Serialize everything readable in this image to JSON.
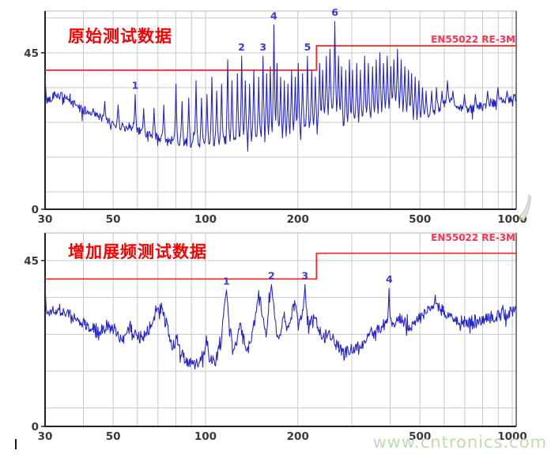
{
  "page": {
    "watermark": "www.cntronics.com"
  },
  "colors": {
    "trace": "#2121cd",
    "limit_line": "#ff2222",
    "limit_label": "#ff3350",
    "title": "#ff0000",
    "axis_text": "#3a3a3a",
    "marker_text": "#3b3bd6",
    "grid": "#c9c9c9",
    "watermark": "#b7d9ab"
  },
  "chart_data": [
    {
      "type": "line",
      "title": "原始测试数据",
      "xlabel": "",
      "ylabel": "",
      "x_scale": "log",
      "xlim": [
        30,
        1030
      ],
      "ylim": [
        0,
        57
      ],
      "x_ticks": [
        30,
        50,
        100,
        200,
        500,
        1000
      ],
      "y_tick_labels": [
        45,
        0
      ],
      "x_gridlines": [
        40,
        50,
        60,
        70,
        80,
        90,
        100,
        200,
        300,
        400,
        500,
        600,
        700,
        800,
        900,
        1000
      ],
      "y_gridlines": [
        5,
        15,
        25,
        35,
        45,
        55
      ],
      "limit_line": {
        "label": "EN55022 RE-3M",
        "points": [
          [
            30,
            40
          ],
          [
            230,
            40
          ],
          [
            230,
            47
          ],
          [
            1030,
            47
          ]
        ]
      },
      "trace_envelope": [
        [
          30,
          30.5
        ],
        [
          32,
          33
        ],
        [
          34,
          32.5
        ],
        [
          36,
          31
        ],
        [
          40,
          28.5
        ],
        [
          45,
          26.5
        ],
        [
          50,
          24.5
        ],
        [
          55,
          23.5
        ],
        [
          60,
          22.5
        ],
        [
          65,
          21.5
        ],
        [
          70,
          20.5
        ],
        [
          75,
          20
        ],
        [
          80,
          19.5
        ],
        [
          85,
          19.5
        ],
        [
          90,
          19
        ],
        [
          95,
          19
        ],
        [
          100,
          19
        ],
        [
          110,
          19.5
        ],
        [
          120,
          20
        ],
        [
          130,
          20.5
        ],
        [
          140,
          20.5
        ],
        [
          150,
          21
        ],
        [
          160,
          21.5
        ],
        [
          170,
          22
        ],
        [
          180,
          21.5
        ],
        [
          190,
          22
        ],
        [
          200,
          23
        ],
        [
          210,
          23.5
        ],
        [
          220,
          23
        ],
        [
          230,
          24.5
        ],
        [
          240,
          26
        ],
        [
          250,
          28
        ],
        [
          260,
          30
        ],
        [
          268,
          28.5
        ],
        [
          275,
          26
        ],
        [
          285,
          24.5
        ],
        [
          300,
          25
        ],
        [
          320,
          26
        ],
        [
          340,
          27
        ],
        [
          355,
          27.5
        ],
        [
          370,
          28.5
        ],
        [
          385,
          29
        ],
        [
          400,
          29.5
        ],
        [
          415,
          30.5
        ],
        [
          430,
          30
        ],
        [
          445,
          29
        ],
        [
          460,
          28
        ],
        [
          480,
          27
        ],
        [
          500,
          26.5
        ],
        [
          520,
          27
        ],
        [
          545,
          27.5
        ],
        [
          570,
          28.5
        ],
        [
          600,
          30
        ],
        [
          620,
          31.5
        ],
        [
          640,
          30.5
        ],
        [
          670,
          29.5
        ],
        [
          700,
          29
        ],
        [
          740,
          29
        ],
        [
          780,
          29.5
        ],
        [
          820,
          30
        ],
        [
          860,
          30.5
        ],
        [
          900,
          31
        ],
        [
          950,
          31.5
        ],
        [
          1030,
          32
        ]
      ],
      "trace_spikes": [
        [
          30,
          39
        ],
        [
          38,
          30
        ],
        [
          43,
          29
        ],
        [
          47,
          31
        ],
        [
          52,
          30
        ],
        [
          59,
          33
        ],
        [
          63,
          29
        ],
        [
          68,
          29
        ],
        [
          73,
          30
        ],
        [
          80,
          36
        ],
        [
          84,
          31
        ],
        [
          88,
          32
        ],
        [
          93,
          37
        ],
        [
          97,
          32
        ],
        [
          101,
          33
        ],
        [
          105,
          38
        ],
        [
          109,
          34
        ],
        [
          113,
          36
        ],
        [
          118,
          43
        ],
        [
          122,
          37
        ],
        [
          127,
          39
        ],
        [
          131,
          44
        ],
        [
          135,
          37
        ],
        [
          139,
          36
        ],
        [
          144,
          40
        ],
        [
          149,
          38
        ],
        [
          154,
          44
        ],
        [
          158,
          39
        ],
        [
          163,
          41
        ],
        [
          167,
          53
        ],
        [
          171,
          42
        ],
        [
          176,
          38
        ],
        [
          181,
          37
        ],
        [
          186,
          36
        ],
        [
          191,
          40
        ],
        [
          196,
          38
        ],
        [
          201,
          42
        ],
        [
          207,
          39
        ],
        [
          215,
          44
        ],
        [
          222,
          40
        ],
        [
          228,
          38
        ],
        [
          235,
          42
        ],
        [
          241,
          40
        ],
        [
          248,
          44
        ],
        [
          255,
          46
        ],
        [
          264,
          54
        ],
        [
          271,
          44
        ],
        [
          278,
          41
        ],
        [
          286,
          40
        ],
        [
          294,
          43
        ],
        [
          302,
          40
        ],
        [
          311,
          42
        ],
        [
          320,
          40
        ],
        [
          330,
          44
        ],
        [
          340,
          42
        ],
        [
          350,
          41
        ],
        [
          360,
          43
        ],
        [
          370,
          45
        ],
        [
          380,
          42
        ],
        [
          391,
          44
        ],
        [
          401,
          41
        ],
        [
          412,
          43
        ],
        [
          423,
          46
        ],
        [
          434,
          43
        ],
        [
          446,
          41
        ],
        [
          458,
          40
        ],
        [
          470,
          39
        ],
        [
          483,
          38
        ],
        [
          496,
          37
        ],
        [
          510,
          35
        ],
        [
          525,
          34
        ],
        [
          545,
          34
        ],
        [
          565,
          35
        ],
        [
          590,
          34
        ],
        [
          615,
          37
        ],
        [
          640,
          34
        ],
        [
          700,
          33
        ],
        [
          760,
          33
        ],
        [
          830,
          34
        ],
        [
          900,
          35
        ],
        [
          960,
          34
        ]
      ],
      "peak_markers": [
        {
          "n": "1",
          "freq": 59,
          "level": 33
        },
        {
          "n": "2",
          "freq": 131,
          "level": 44
        },
        {
          "n": "3",
          "freq": 154,
          "level": 44
        },
        {
          "n": "4",
          "freq": 167,
          "level": 53
        },
        {
          "n": "5",
          "freq": 215,
          "level": 44
        },
        {
          "n": "6",
          "freq": 264,
          "level": 54
        }
      ]
    },
    {
      "type": "line",
      "title": "增加展频测试数据",
      "xlabel": "",
      "ylabel": "",
      "x_scale": "log",
      "xlim": [
        30,
        1030
      ],
      "ylim": [
        0,
        52.5
      ],
      "x_ticks": [
        30,
        50,
        100,
        200,
        500,
        1000
      ],
      "y_tick_labels": [
        45,
        0
      ],
      "x_gridlines": [
        40,
        50,
        60,
        70,
        80,
        90,
        100,
        200,
        300,
        400,
        500,
        600,
        700,
        800,
        900,
        1000
      ],
      "y_gridlines": [
        5,
        15,
        25,
        35,
        45
      ],
      "limit_line": {
        "label": "EN55022 RE-3M",
        "points": [
          [
            30,
            40
          ],
          [
            230,
            40
          ],
          [
            230,
            47
          ],
          [
            1030,
            47
          ]
        ]
      },
      "trace_envelope": [
        [
          30,
          30
        ],
        [
          32,
          32
        ],
        [
          34,
          31.5
        ],
        [
          37,
          29.5
        ],
        [
          40,
          28
        ],
        [
          44,
          26.5
        ],
        [
          47,
          26
        ],
        [
          48.5,
          27.5
        ],
        [
          50,
          25.5
        ],
        [
          54,
          24
        ],
        [
          57,
          27
        ],
        [
          59,
          25
        ],
        [
          62,
          24
        ],
        [
          66,
          27
        ],
        [
          69,
          31.5
        ],
        [
          72,
          32
        ],
        [
          75,
          27
        ],
        [
          78,
          22
        ],
        [
          81,
          23.5
        ],
        [
          84,
          19
        ],
        [
          88,
          17.5
        ],
        [
          92,
          17
        ],
        [
          96,
          17.5
        ],
        [
          99,
          21
        ],
        [
          101,
          23.5
        ],
        [
          104,
          18
        ],
        [
          108,
          18
        ],
        [
          112,
          22
        ],
        [
          115,
          33
        ],
        [
          117,
          35
        ],
        [
          119,
          30
        ],
        [
          123,
          19.5
        ],
        [
          126,
          22
        ],
        [
          130,
          28
        ],
        [
          134,
          23
        ],
        [
          138,
          21
        ],
        [
          143,
          26
        ],
        [
          148,
          33
        ],
        [
          151,
          34.5
        ],
        [
          154,
          28
        ],
        [
          158,
          26
        ],
        [
          161,
          34
        ],
        [
          164,
          36.5
        ],
        [
          168,
          30
        ],
        [
          172,
          23
        ],
        [
          176,
          26
        ],
        [
          181,
          30
        ],
        [
          184,
          26
        ],
        [
          188,
          28
        ],
        [
          193,
          32
        ],
        [
          197,
          33
        ],
        [
          201,
          28
        ],
        [
          205,
          30
        ],
        [
          209,
          33.5
        ],
        [
          213,
          31
        ],
        [
          218,
          28
        ],
        [
          224,
          29
        ],
        [
          230,
          28
        ],
        [
          237,
          26
        ],
        [
          244,
          24
        ],
        [
          252,
          26
        ],
        [
          260,
          23.5
        ],
        [
          268,
          22
        ],
        [
          277,
          20.5
        ],
        [
          287,
          20
        ],
        [
          297,
          20.5
        ],
        [
          310,
          21.5
        ],
        [
          330,
          23
        ],
        [
          350,
          25
        ],
        [
          370,
          26.5
        ],
        [
          390,
          27.5
        ],
        [
          410,
          28
        ],
        [
          430,
          29
        ],
        [
          450,
          28
        ],
        [
          470,
          27.5
        ],
        [
          490,
          28.5
        ],
        [
          510,
          30
        ],
        [
          530,
          31.5
        ],
        [
          550,
          33.5
        ],
        [
          565,
          35
        ],
        [
          580,
          33
        ],
        [
          600,
          31
        ],
        [
          625,
          30
        ],
        [
          650,
          29.5
        ],
        [
          690,
          28.5
        ],
        [
          730,
          28.5
        ],
        [
          780,
          29
        ],
        [
          830,
          29.5
        ],
        [
          880,
          30
        ],
        [
          930,
          30.5
        ],
        [
          1030,
          31
        ]
      ],
      "trace_spikes": [
        [
          30,
          39
        ],
        [
          117,
          37
        ],
        [
          164,
          38.5
        ],
        [
          211,
          38.5
        ],
        [
          397,
          37.5
        ]
      ],
      "peak_markers": [
        {
          "n": "1",
          "freq": 117,
          "level": 37
        },
        {
          "n": "2",
          "freq": 164,
          "level": 38.5
        },
        {
          "n": "3",
          "freq": 211,
          "level": 38.5
        },
        {
          "n": "4",
          "freq": 397,
          "level": 37.5
        }
      ]
    }
  ]
}
